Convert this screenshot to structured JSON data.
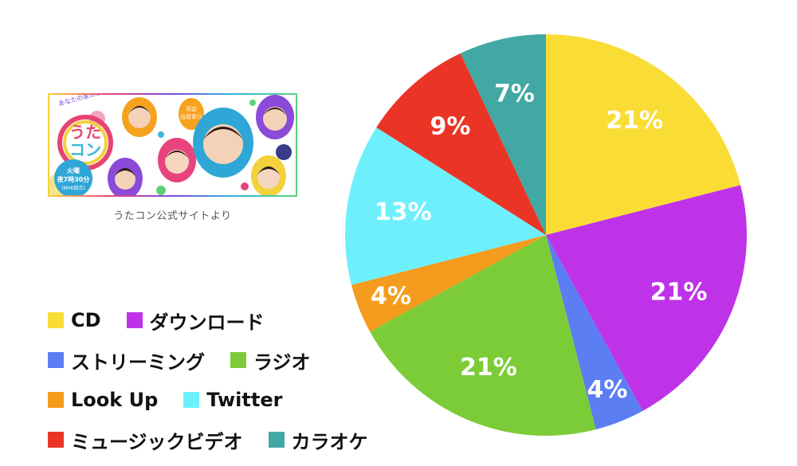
{
  "banner": {
    "tagline": "あなたの家のコンシェルジュ",
    "logo_line1": "うた",
    "logo_line2": "コン",
    "day": "火曜",
    "time": "夜7時30分",
    "channel": "(NHK総合)",
    "host_label": "司会",
    "host_name": "谷原章介"
  },
  "caption": "うたコン公式サイトより",
  "chart_data": {
    "type": "pie",
    "title": "",
    "series": [
      {
        "name": "CD",
        "value": 21,
        "label": "21%",
        "color": "#f9dd35"
      },
      {
        "name": "ダウンロード",
        "value": 21,
        "label": "21%",
        "color": "#bf33e8"
      },
      {
        "name": "ストリーミング",
        "value": 4,
        "label": "4%",
        "color": "#5b7ef3"
      },
      {
        "name": "ラジオ",
        "value": 21,
        "label": "21%",
        "color": "#7ccc38"
      },
      {
        "name": "Look Up",
        "value": 4,
        "label": "4%",
        "color": "#f59b1d"
      },
      {
        "name": "Twitter",
        "value": 13,
        "label": "13%",
        "color": "#6df0fb"
      },
      {
        "name": "ミュージックビデオ",
        "value": 9,
        "label": "9%",
        "color": "#ea3526"
      },
      {
        "name": "カラオケ",
        "value": 7,
        "label": "7%",
        "color": "#41a8a4"
      }
    ],
    "legend_position": "bottom-left",
    "start": "top, clockwise"
  }
}
